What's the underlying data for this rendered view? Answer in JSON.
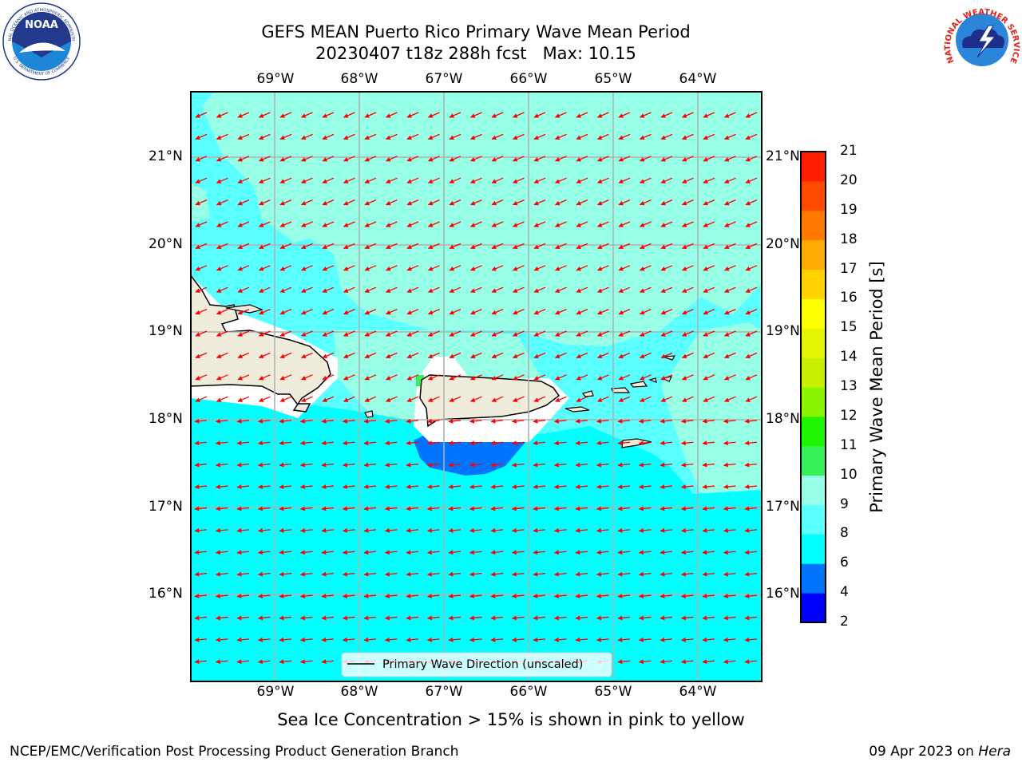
{
  "title": {
    "line1": "GEFS MEAN Puerto Rico Primary Wave Mean Period",
    "line2": "20230407 t18z 288h fcst   Max: 10.15"
  },
  "lon_labels": [
    "69°W",
    "68°W",
    "67°W",
    "66°W",
    "65°W",
    "64°W"
  ],
  "lat_labels": [
    "21°N",
    "20°N",
    "19°N",
    "18°N",
    "17°N",
    "16°N"
  ],
  "legend": {
    "label": "Primary Wave Direction (unscaled)"
  },
  "colorbar": {
    "label": "Primary Wave Mean Period [s]",
    "ticks": [
      "2",
      "4",
      "6",
      "8",
      "9",
      "10",
      "11",
      "12",
      "13",
      "14",
      "15",
      "16",
      "17",
      "18",
      "19",
      "20",
      "21"
    ],
    "colors": [
      "#0000ff",
      "#0073ff",
      "#00ffff",
      "#5affff",
      "#96ffe6",
      "#38f15a",
      "#1ef500",
      "#8cf500",
      "#c8f000",
      "#e6f500",
      "#ffff00",
      "#ffd200",
      "#ffaa00",
      "#ff7800",
      "#ff4b00",
      "#ff1e00"
    ]
  },
  "map": {
    "colors": {
      "land": "#efecdc",
      "coast": "#000000",
      "arrow": "#ff0000",
      "grid": "#b0b0b0"
    },
    "arrow_direction": "toward WSW (wind from ENE)"
  },
  "sea_ice_note": "Sea Ice Concentration > 15% is shown in pink to yellow",
  "footer": {
    "left": "NCEP/EMC/Verification Post Processing Product Generation Branch",
    "right_prefix": "09 Apr 2023 on ",
    "right_machine": "Hera"
  },
  "logos": {
    "noaa_text": "NOAA",
    "noaa_ring_top": "NATIONAL OCEANIC AND ATMOSPHERIC ADMINISTRATION",
    "noaa_ring_bottom": "U.S. DEPARTMENT OF COMMERCE",
    "nws_ring": "NATIONAL WEATHER SERVICE"
  }
}
